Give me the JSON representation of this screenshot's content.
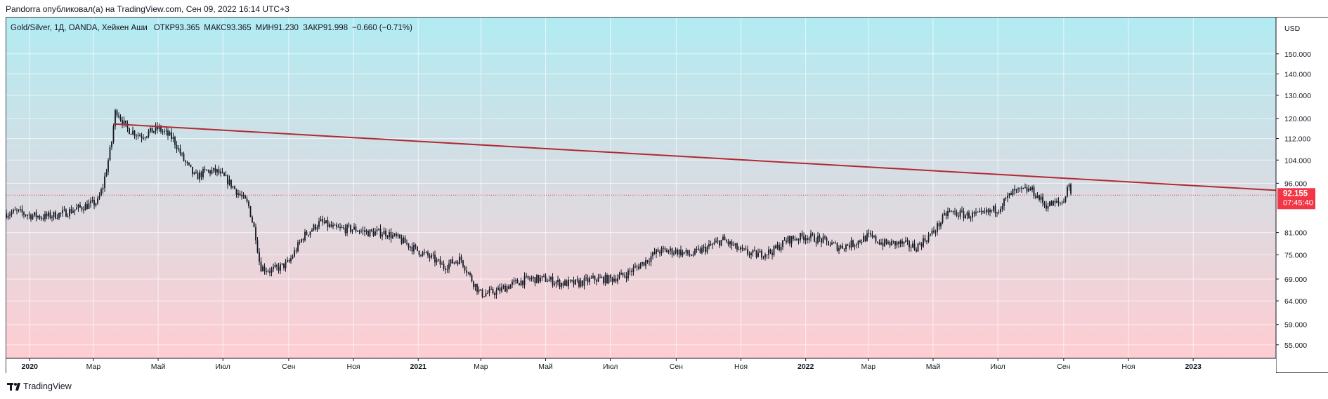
{
  "header": {
    "attribution": "Pandorra опубликовал(а) на TradingView.com, Сен 09, 2022 16:14 UTC+3"
  },
  "legend": {
    "symbol": "Gold/Silver, 1Д, OANDA, Хейкен Аши",
    "open": "ОТКР93.365",
    "high": "МАКС93.365",
    "low": "МИН91.230",
    "close": "ЗАКР91.998",
    "change": "−0.660 (−0.71%)"
  },
  "price_axis": {
    "currency": "USD",
    "ticks": [
      "150.000",
      "140.000",
      "130.000",
      "120.000",
      "112.000",
      "104.000",
      "96.000",
      "81.000",
      "75.000",
      "69.000",
      "64.000",
      "59.000",
      "55.000"
    ],
    "last_price": "92.155",
    "countdown": "07:45:40"
  },
  "time_axis": {
    "labels": [
      "2020",
      "Мар",
      "Май",
      "Июл",
      "Сен",
      "Ноя",
      "2021",
      "Мар",
      "Май",
      "Июл",
      "Сен",
      "Ноя",
      "2022",
      "Мар",
      "Май",
      "Июл",
      "Сен",
      "Ноя",
      "2023"
    ]
  },
  "footer": {
    "brand": "TradingView"
  },
  "colors": {
    "bg_top": "#b2ebf2",
    "bg_bottom": "#ffcdd2",
    "trendline": "#b22833",
    "last_price_bg": "#f23645",
    "candle": "#131722"
  },
  "chart_data": {
    "type": "line",
    "title": "Gold/Silver, 1Д, OANDA, Хейкен Аши",
    "ylabel": "USD",
    "scale": "log",
    "ylim": [
      52.5,
      170
    ],
    "xlim": [
      "2019-12-10",
      "2023-03-20"
    ],
    "x_ticks": [
      "2020-01-01",
      "2020-03-01",
      "2020-05-01",
      "2020-07-01",
      "2020-09-01",
      "2020-11-01",
      "2021-01-01",
      "2021-03-01",
      "2021-05-01",
      "2021-07-01",
      "2021-09-01",
      "2021-11-01",
      "2022-01-01",
      "2022-03-01",
      "2022-05-01",
      "2022-07-01",
      "2022-09-01",
      "2022-11-01",
      "2023-01-01"
    ],
    "series": [
      {
        "name": "Gold/Silver",
        "x": [
          "2019-12-10",
          "2019-12-20",
          "2020-01-01",
          "2020-01-15",
          "2020-02-01",
          "2020-02-15",
          "2020-02-25",
          "2020-03-05",
          "2020-03-10",
          "2020-03-14",
          "2020-03-18",
          "2020-03-22",
          "2020-04-01",
          "2020-04-15",
          "2020-05-01",
          "2020-05-15",
          "2020-05-25",
          "2020-06-05",
          "2020-06-15",
          "2020-06-25",
          "2020-07-05",
          "2020-07-15",
          "2020-07-25",
          "2020-08-01",
          "2020-08-05",
          "2020-08-15",
          "2020-08-25",
          "2020-09-01",
          "2020-09-15",
          "2020-10-01",
          "2020-10-15",
          "2020-11-01",
          "2020-11-15",
          "2020-12-01",
          "2020-12-15",
          "2021-01-01",
          "2021-01-15",
          "2021-01-25",
          "2021-02-01",
          "2021-02-10",
          "2021-02-20",
          "2021-03-01",
          "2021-03-15",
          "2021-04-01",
          "2021-04-15",
          "2021-05-01",
          "2021-05-15",
          "2021-06-01",
          "2021-06-15",
          "2021-07-01",
          "2021-07-15",
          "2021-08-01",
          "2021-08-15",
          "2021-09-01",
          "2021-09-15",
          "2021-10-01",
          "2021-10-15",
          "2021-11-01",
          "2021-11-15",
          "2021-12-01",
          "2021-12-15",
          "2022-01-01",
          "2022-01-15",
          "2022-02-01",
          "2022-02-15",
          "2022-03-01",
          "2022-03-15",
          "2022-04-01",
          "2022-04-15",
          "2022-05-01",
          "2022-05-15",
          "2022-06-01",
          "2022-06-15",
          "2022-07-01",
          "2022-07-15",
          "2022-08-01",
          "2022-08-15",
          "2022-09-01",
          "2022-09-05",
          "2022-09-09"
        ],
        "values": [
          86.5,
          87,
          86,
          85.5,
          86.5,
          88,
          89,
          90,
          95,
          102,
          110,
          124,
          116,
          113,
          116,
          112,
          104,
          98,
          100,
          100,
          97,
          93,
          89,
          80,
          72,
          71,
          72,
          73,
          80,
          84,
          82,
          82,
          81,
          81,
          79,
          76,
          74,
          72,
          73,
          74,
          69,
          65.5,
          66,
          68,
          69,
          69,
          68,
          68,
          69,
          69,
          70,
          73,
          76,
          76,
          75,
          77,
          79,
          76,
          75,
          76,
          79,
          80,
          79,
          77,
          78,
          80,
          78,
          78,
          77,
          81,
          87,
          86,
          86,
          88,
          93,
          94,
          89,
          90,
          96,
          92
        ]
      }
    ],
    "trendline": {
      "x": [
        "2020-03-20",
        "2023-03-20"
      ],
      "y": [
        117.8,
        93.7
      ]
    },
    "last_price_line": 92.155
  }
}
